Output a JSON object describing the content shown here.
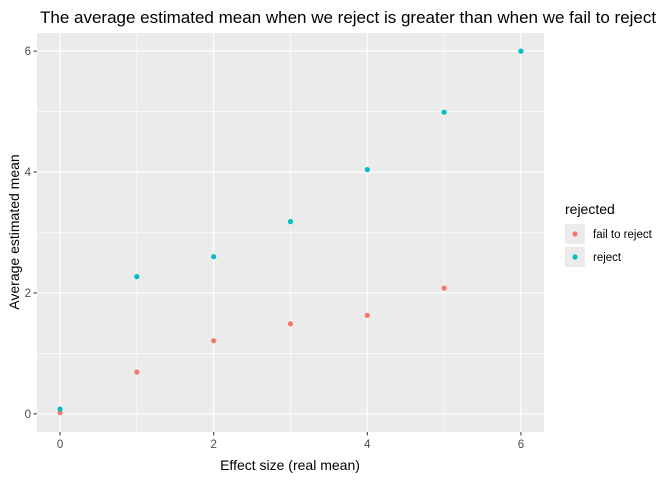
{
  "chart_data": {
    "type": "scatter",
    "title": "The average estimated mean when we reject is greater than when we fail to reject",
    "xlabel": "Effect size (real mean)",
    "ylabel": "Average estimated mean",
    "xlim": [
      -0.3,
      6.3
    ],
    "ylim": [
      -0.3,
      6.3
    ],
    "x_ticks": [
      0,
      2,
      4,
      6
    ],
    "y_ticks": [
      0,
      2,
      4,
      6
    ],
    "x_tick_labels": [
      "0",
      "2",
      "4",
      "6"
    ],
    "y_tick_labels": [
      "0",
      "2",
      "4",
      "6"
    ],
    "grid": true,
    "legend": {
      "title": "rejected",
      "position": "right"
    },
    "series": [
      {
        "name": "fail to reject",
        "color": "#F8766D",
        "points": [
          {
            "x": 0,
            "y": 0.02
          },
          {
            "x": 1,
            "y": 0.69
          },
          {
            "x": 2,
            "y": 1.21
          },
          {
            "x": 3,
            "y": 1.49
          },
          {
            "x": 4,
            "y": 1.63
          },
          {
            "x": 5,
            "y": 2.08
          }
        ]
      },
      {
        "name": "reject",
        "color": "#00BFC4",
        "points": [
          {
            "x": 0,
            "y": 0.08
          },
          {
            "x": 1,
            "y": 2.27
          },
          {
            "x": 2,
            "y": 2.6
          },
          {
            "x": 3,
            "y": 3.18
          },
          {
            "x": 4,
            "y": 4.04
          },
          {
            "x": 5,
            "y": 4.99
          },
          {
            "x": 6,
            "y": 6.0
          }
        ]
      }
    ]
  }
}
